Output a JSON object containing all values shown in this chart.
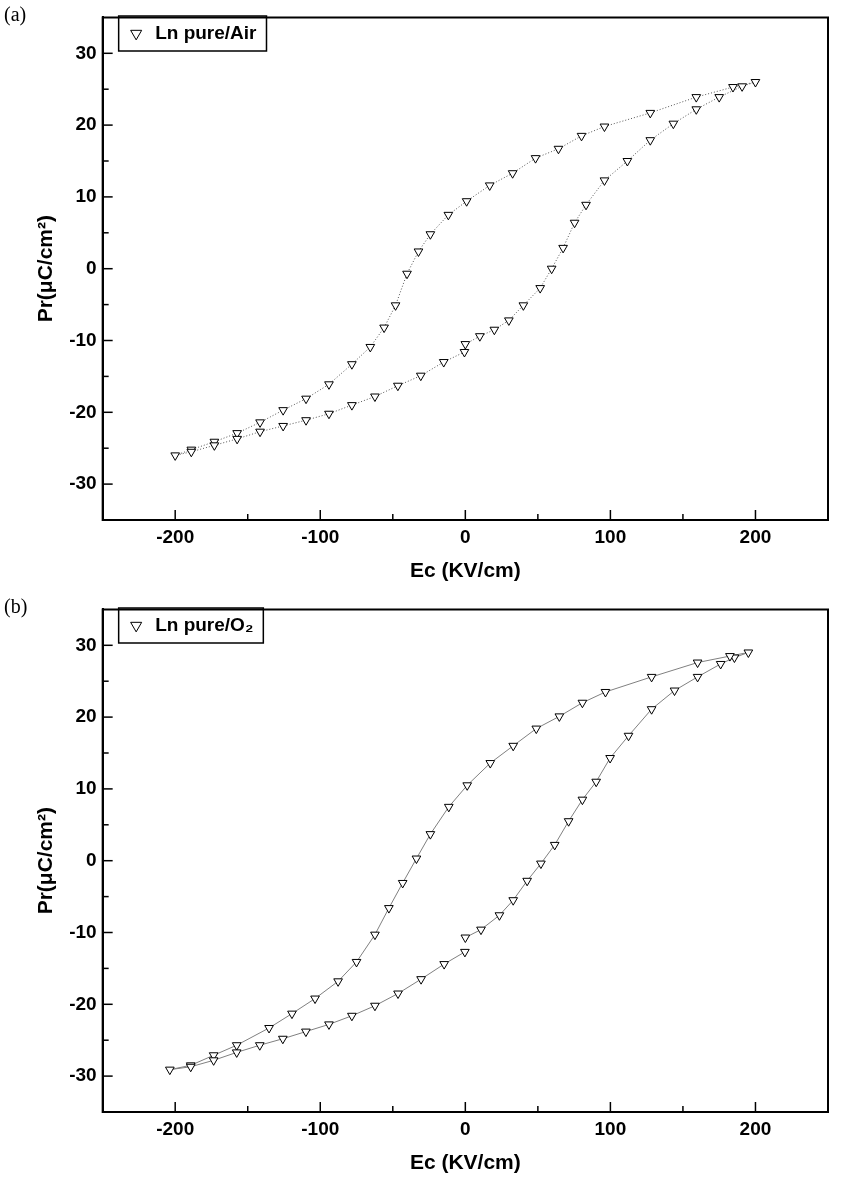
{
  "chart_data": [
    {
      "type": "line",
      "annotations": [
        "(a)"
      ],
      "xlabel": "Ec (KV/cm)",
      "ylabel": "Pr(μC/cm²)",
      "xlim": [
        -250,
        250
      ],
      "ylim": [
        -35,
        35
      ],
      "xticks": [
        -200,
        {
          "value": -150,
          "label": null
        },
        -100,
        {
          "value": -50,
          "label": null
        },
        0,
        {
          "value": 50,
          "label": null
        },
        100,
        {
          "value": 150,
          "label": null
        },
        200
      ],
      "yticks": [
        -30,
        {
          "value": -25,
          "label": null
        },
        -20,
        {
          "value": -15,
          "label": null
        },
        -10,
        {
          "value": -5,
          "label": null
        },
        0,
        {
          "value": 5,
          "label": null
        },
        10,
        {
          "value": 15,
          "label": null
        },
        20,
        {
          "value": 25,
          "label": null
        },
        30
      ],
      "legend": "top left",
      "marker": "triangle",
      "line_style": "dotted",
      "series": [
        {
          "name": "Ln pure/Air",
          "color": "#000000",
          "x": [
            0,
            10,
            20,
            30,
            40,
            51.6,
            59.5,
            67.4,
            75.3,
            83.2,
            95.9,
            111.7,
            127.5,
            143.4,
            159.2,
            175,
            190.8,
            200,
            184.5,
            159.2,
            127.5,
            95.9,
            80.1,
            64.2,
            48.4,
            32.6,
            16.8,
            0.9,
            -11.7,
            -24.1,
            -32.3,
            -40.2,
            -48.1,
            -56,
            -65.5,
            -78.2,
            -94,
            -109.8,
            -125.6,
            -141.5,
            -157.3,
            -173,
            -188.9,
            -200,
            -188.9,
            -173,
            -157.3,
            -141.5,
            -125.6,
            -109.8,
            -94,
            -78.2,
            -62.3,
            -46.5,
            -30.7,
            -14.9,
            -0.6
          ],
          "values": [
            -10.5,
            -9.4,
            -8.5,
            -7.2,
            -5.1,
            -2.7,
            0,
            2.9,
            6.4,
            8.9,
            12.3,
            15.0,
            17.9,
            20.2,
            22.2,
            23.9,
            25.4,
            26.0,
            25.3,
            23.9,
            21.7,
            19.8,
            18.5,
            16.7,
            15.4,
            13.3,
            11.6,
            9.4,
            7.5,
            4.8,
            2.4,
            -0.7,
            -5.1,
            -8.2,
            -10.9,
            -13.3,
            -16.1,
            -18.1,
            -19.7,
            -21.4,
            -22.9,
            -24.1,
            -25.2,
            -26.0,
            -25.5,
            -24.6,
            -23.7,
            -22.7,
            -21.9,
            -21.1,
            -20.2,
            -19.0,
            -17.8,
            -16.3,
            -14.9,
            -13.0,
            -11.6
          ]
        }
      ]
    },
    {
      "type": "line",
      "annotations": [
        "(b)"
      ],
      "xlabel": "Ec (KV/cm)",
      "ylabel": "Pr(μC/cm²)",
      "xlim": [
        -250,
        250
      ],
      "ylim": [
        -35,
        35
      ],
      "xticks": [
        -200,
        {
          "value": -150,
          "label": null
        },
        -100,
        {
          "value": -50,
          "label": null
        },
        0,
        {
          "value": 50,
          "label": null
        },
        100,
        {
          "value": 150,
          "label": null
        },
        200
      ],
      "yticks": [
        -30,
        {
          "value": -25,
          "label": null
        },
        -20,
        {
          "value": -15,
          "label": null
        },
        -10,
        {
          "value": -5,
          "label": null
        },
        0,
        {
          "value": 5,
          "label": null
        },
        10,
        {
          "value": 15,
          "label": null
        },
        20,
        {
          "value": 25,
          "label": null
        },
        30
      ],
      "legend": "top left",
      "marker": "triangle",
      "line_style": "solid",
      "series": [
        {
          "name": "Ln pure/O₂",
          "color": "#000000",
          "x": [
            0,
            10.8,
            23.5,
            33,
            42.6,
            52.1,
            61.6,
            71.2,
            80.7,
            90.2,
            99.8,
            112.5,
            128.4,
            144.2,
            160.1,
            176,
            185.5,
            195.1,
            182.4,
            160.1,
            128.4,
            96.6,
            80.7,
            64.8,
            48.9,
            33,
            17.2,
            1.3,
            -11.4,
            -24.1,
            -33.7,
            -43.2,
            -52.7,
            -62.3,
            -75,
            -87.7,
            -103.6,
            -119.5,
            -135.3,
            -157.6,
            -173.5,
            -189.3,
            -203.7,
            -189.3,
            -173.5,
            -157.6,
            -141.7,
            -125.8,
            -109.9,
            -94,
            -78.2,
            -62.3,
            -46.4,
            -30.5,
            -14.6,
            -0.3
          ],
          "values": [
            -10.7,
            -9.6,
            -7.6,
            -5.5,
            -2.8,
            -0.4,
            2.2,
            5.5,
            8.5,
            11.0,
            14.3,
            17.4,
            21.1,
            23.7,
            25.6,
            27.4,
            28.3,
            29.0,
            28.5,
            27.6,
            25.6,
            23.5,
            22.0,
            20.1,
            18.4,
            16.0,
            13.6,
            10.5,
            7.5,
            3.7,
            0.3,
            -3.1,
            -6.6,
            -10.3,
            -14.1,
            -16.8,
            -19.2,
            -21.3,
            -23.3,
            -25.7,
            -27.1,
            -28.5,
            -29.1,
            -28.7,
            -27.8,
            -26.7,
            -25.7,
            -24.8,
            -23.8,
            -22.8,
            -21.6,
            -20.2,
            -18.5,
            -16.5,
            -14.4,
            -12.7
          ]
        }
      ]
    }
  ]
}
